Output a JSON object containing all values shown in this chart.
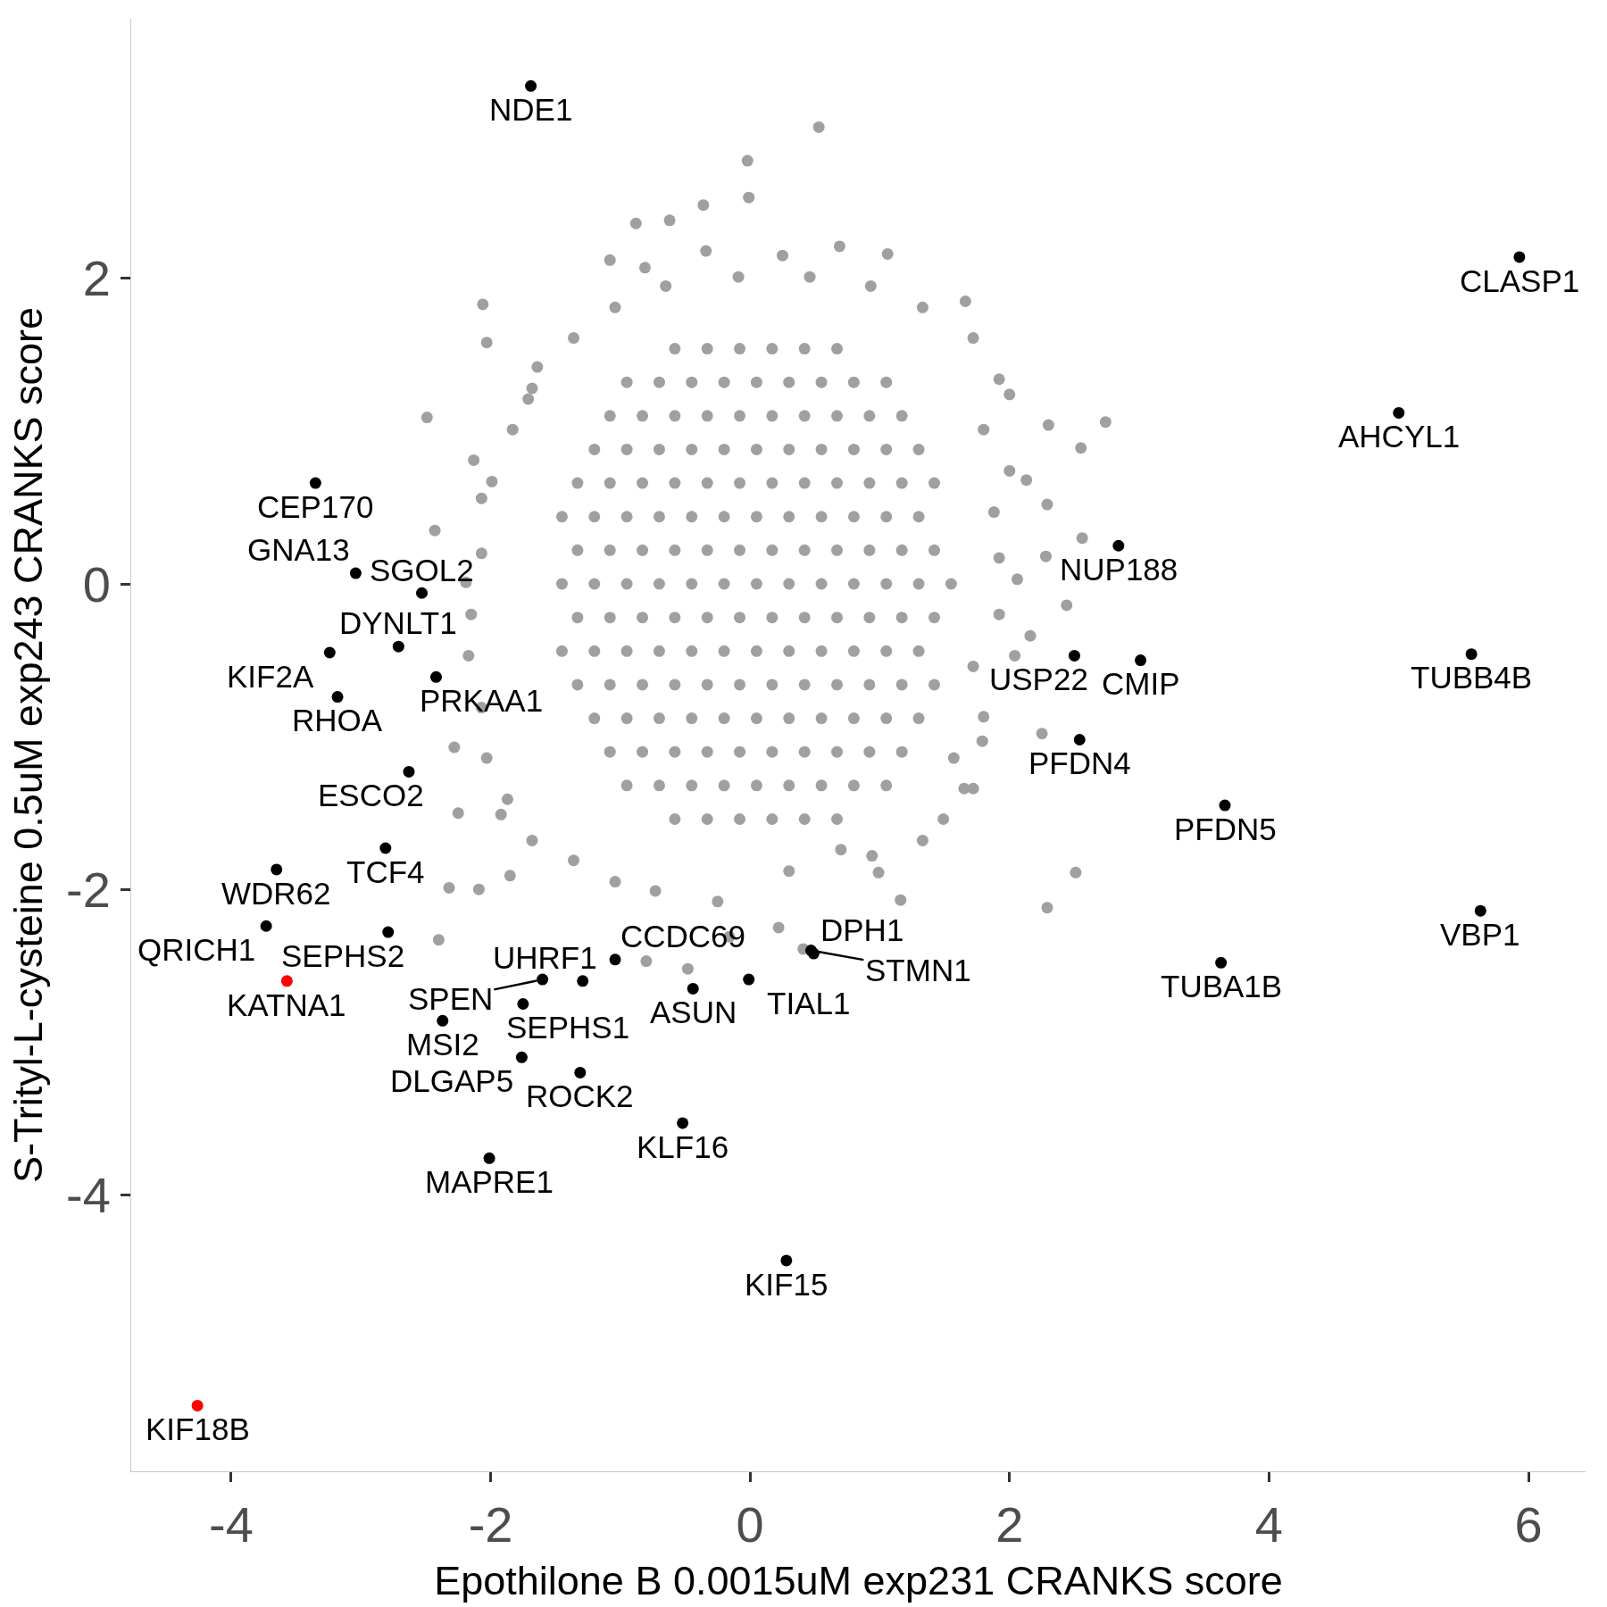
{
  "chart_data": {
    "type": "scatter",
    "xlabel": "Epothilone B 0.0015uM exp231 CRANKS score",
    "ylabel": "S-Trityl-L-cysteine 0.5uM exp243 CRANKS score",
    "xlim": [
      -4.77,
      6.44
    ],
    "ylim": [
      -5.81,
      3.7
    ],
    "xticks": [
      -4,
      -2,
      0,
      2,
      4,
      6
    ],
    "yticks": [
      -4,
      -2,
      0,
      2
    ],
    "marker": "circle",
    "series": [
      {
        "color": "#a0a0a0",
        "x": [
          0.53,
          -0.02,
          -0.01,
          -0.36,
          -0.62,
          -0.88,
          -1.08,
          -0.81,
          -0.34,
          0.25,
          0.69,
          1.06,
          -2.06,
          -2.03,
          -2.49,
          -1.64,
          -1.71,
          -2.13,
          -2.07,
          2.74,
          2.3,
          2.0,
          1.66,
          2.55,
          2.13,
          2.29,
          2.56,
          2.28,
          -2.43,
          -2.19,
          2.51,
          2.29,
          2.25,
          1.79,
          1.65,
          1.16,
          0.94,
          0.99,
          -2.25,
          -1.92,
          -2.28,
          -2.32,
          -2.4,
          -2.09,
          -1.85,
          -0.8,
          -0.48,
          -0.16,
          0.22,
          0.41,
          1.92,
          2.06,
          1.72,
          2.16,
          2.04,
          1.92,
          1.33,
          0.7,
          0.3,
          -0.25,
          -0.73,
          -1.04,
          -1.36,
          -1.68,
          -1.87,
          -2.03,
          -2.07,
          -2.17,
          -2.15,
          -2.07,
          -1.99,
          -1.83,
          -1.68,
          -1.36,
          -1.04,
          -0.65,
          -0.09,
          0.46,
          0.93,
          1.33,
          1.72,
          1.92,
          1.8,
          2.0,
          1.88,
          1.72,
          1.8,
          1.57,
          1.49,
          2.44,
          -1.45,
          -1.2,
          -0.95,
          -0.7,
          -0.45,
          -0.2,
          0.05,
          0.3,
          0.55,
          0.8,
          1.05,
          1.3,
          1.55,
          -1.33,
          -1.08,
          -0.83,
          -0.58,
          -0.33,
          -0.08,
          0.17,
          0.42,
          0.67,
          0.92,
          1.17,
          1.42,
          -1.33,
          -1.08,
          -0.83,
          -0.58,
          -0.33,
          -0.08,
          0.17,
          0.42,
          0.67,
          0.92,
          1.17,
          1.42,
          -1.45,
          -1.2,
          -0.95,
          -0.7,
          -0.45,
          -0.2,
          0.05,
          0.3,
          0.55,
          0.8,
          1.05,
          1.3,
          -1.45,
          -1.2,
          -0.95,
          -0.7,
          -0.45,
          -0.2,
          0.05,
          0.3,
          0.55,
          0.8,
          1.05,
          1.3,
          -1.33,
          -1.08,
          -0.83,
          -0.58,
          -0.33,
          -0.08,
          0.17,
          0.42,
          0.67,
          0.92,
          1.17,
          1.42,
          -1.33,
          -1.08,
          -0.83,
          -0.58,
          -0.33,
          -0.08,
          0.17,
          0.42,
          0.67,
          0.92,
          1.17,
          1.42,
          -1.2,
          -0.95,
          -0.7,
          -0.45,
          -0.2,
          0.05,
          0.3,
          0.55,
          0.8,
          1.05,
          1.3,
          -1.2,
          -0.95,
          -0.7,
          -0.45,
          -0.2,
          0.05,
          0.3,
          0.55,
          0.8,
          1.05,
          1.3,
          -1.08,
          -0.83,
          -0.58,
          -0.33,
          -0.08,
          0.17,
          0.42,
          0.67,
          0.92,
          1.17,
          -1.08,
          -0.83,
          -0.58,
          -0.33,
          -0.08,
          0.17,
          0.42,
          0.67,
          0.92,
          1.17,
          -0.95,
          -0.7,
          -0.45,
          -0.2,
          0.05,
          0.3,
          0.55,
          0.8,
          1.05,
          -0.95,
          -0.7,
          -0.45,
          -0.2,
          0.05,
          0.3,
          0.55,
          0.8,
          1.05,
          -0.58,
          -0.33,
          -0.08,
          0.17,
          0.42,
          0.67,
          -0.58,
          -0.33,
          -0.08,
          0.17,
          0.42,
          0.67
        ],
        "values": [
          2.99,
          2.77,
          2.53,
          2.48,
          2.38,
          2.36,
          2.12,
          2.07,
          2.18,
          2.15,
          2.21,
          2.16,
          1.83,
          1.58,
          1.09,
          1.42,
          1.21,
          0.81,
          0.56,
          1.06,
          1.04,
          1.24,
          1.85,
          0.89,
          0.68,
          0.52,
          0.3,
          0.18,
          0.35,
          0.01,
          -1.89,
          -2.12,
          -0.98,
          -1.03,
          -1.34,
          -2.07,
          -1.78,
          -1.89,
          -1.5,
          -1.51,
          -1.07,
          -1.99,
          -2.33,
          -2.0,
          -1.91,
          -2.47,
          -2.52,
          -2.31,
          -2.25,
          -2.39,
          0.17,
          0.03,
          -1.34,
          -0.34,
          -0.47,
          -0.2,
          -1.68,
          -1.74,
          -1.88,
          -2.08,
          -2.01,
          -1.95,
          -1.81,
          -1.68,
          -1.41,
          -1.14,
          -0.81,
          -0.47,
          -0.2,
          0.2,
          0.67,
          1.01,
          1.28,
          1.61,
          1.81,
          1.95,
          2.01,
          2.01,
          1.95,
          1.81,
          1.61,
          1.34,
          1.01,
          0.74,
          0.47,
          -0.54,
          -0.87,
          -1.14,
          -1.54,
          -0.14,
          0,
          0,
          0,
          0,
          0,
          0,
          0,
          0,
          0,
          0,
          0,
          0,
          0,
          0.22,
          0.22,
          0.22,
          0.22,
          0.22,
          0.22,
          0.22,
          0.22,
          0.22,
          0.22,
          0.22,
          0.22,
          -0.22,
          -0.22,
          -0.22,
          -0.22,
          -0.22,
          -0.22,
          -0.22,
          -0.22,
          -0.22,
          -0.22,
          -0.22,
          -0.22,
          0.44,
          0.44,
          0.44,
          0.44,
          0.44,
          0.44,
          0.44,
          0.44,
          0.44,
          0.44,
          0.44,
          0.44,
          -0.44,
          -0.44,
          -0.44,
          -0.44,
          -0.44,
          -0.44,
          -0.44,
          -0.44,
          -0.44,
          -0.44,
          -0.44,
          -0.44,
          0.66,
          0.66,
          0.66,
          0.66,
          0.66,
          0.66,
          0.66,
          0.66,
          0.66,
          0.66,
          0.66,
          0.66,
          -0.66,
          -0.66,
          -0.66,
          -0.66,
          -0.66,
          -0.66,
          -0.66,
          -0.66,
          -0.66,
          -0.66,
          -0.66,
          -0.66,
          0.88,
          0.88,
          0.88,
          0.88,
          0.88,
          0.88,
          0.88,
          0.88,
          0.88,
          0.88,
          0.88,
          -0.88,
          -0.88,
          -0.88,
          -0.88,
          -0.88,
          -0.88,
          -0.88,
          -0.88,
          -0.88,
          -0.88,
          -0.88,
          1.1,
          1.1,
          1.1,
          1.1,
          1.1,
          1.1,
          1.1,
          1.1,
          1.1,
          1.1,
          -1.1,
          -1.1,
          -1.1,
          -1.1,
          -1.1,
          -1.1,
          -1.1,
          -1.1,
          -1.1,
          -1.1,
          1.32,
          1.32,
          1.32,
          1.32,
          1.32,
          1.32,
          1.32,
          1.32,
          1.32,
          -1.32,
          -1.32,
          -1.32,
          -1.32,
          -1.32,
          -1.32,
          -1.32,
          -1.32,
          -1.32,
          1.54,
          1.54,
          1.54,
          1.54,
          1.54,
          1.54,
          -1.54,
          -1.54,
          -1.54,
          -1.54,
          -1.54,
          -1.54
        ]
      },
      {
        "color": "#000000",
        "x": [
          -1.69,
          5.93,
          5.0,
          -3.35,
          2.84,
          -3.04,
          -2.53,
          -2.71,
          2.5,
          5.56,
          -3.24,
          3.01,
          -2.42,
          -3.18,
          2.54,
          -2.63,
          3.66,
          -2.81,
          -3.65,
          5.63,
          -3.73,
          -2.79,
          0.47,
          -1.04,
          0.49,
          3.63,
          -1.6,
          -1.29,
          -0.01,
          -0.44,
          -1.75,
          -2.37,
          -1.76,
          -1.31,
          -0.52,
          -2.01,
          0.28
        ],
        "values": [
          3.26,
          2.14,
          1.12,
          0.66,
          0.25,
          0.07,
          -0.06,
          -0.41,
          -0.47,
          -0.46,
          -0.45,
          -0.5,
          -0.61,
          -0.74,
          -1.02,
          -1.23,
          -1.45,
          -1.73,
          -1.87,
          -2.14,
          -2.24,
          -2.28,
          -2.4,
          -2.46,
          -2.42,
          -2.48,
          -2.59,
          -2.6,
          -2.59,
          -2.65,
          -2.75,
          -2.86,
          -3.1,
          -3.2,
          -3.53,
          -3.76,
          -4.43
        ]
      },
      {
        "color": "#ff0000",
        "x": [
          -3.57,
          -4.26
        ],
        "values": [
          -2.6,
          -5.38
        ]
      }
    ],
    "annotations": [
      {
        "text": "NDE1",
        "x": -1.69,
        "y": 3.26
      },
      {
        "text": "CLASP1",
        "x": 5.93,
        "y": 2.14
      },
      {
        "text": "AHCYL1",
        "x": 5.0,
        "y": 1.12
      },
      {
        "text": "CEP170",
        "x": -3.35,
        "y": 0.66
      },
      {
        "text": "NUP188",
        "x": 2.84,
        "y": 0.25
      },
      {
        "text": "GNA13",
        "x": -3.04,
        "y": 0.07
      },
      {
        "text": "SGOL2",
        "x": -2.53,
        "y": -0.06
      },
      {
        "text": "DYNLT1",
        "x": -2.71,
        "y": -0.41
      },
      {
        "text": "USP22",
        "x": 2.5,
        "y": -0.47
      },
      {
        "text": "TUBB4B",
        "x": 5.56,
        "y": -0.46
      },
      {
        "text": "KIF2A",
        "x": -3.24,
        "y": -0.45
      },
      {
        "text": "CMIP",
        "x": 3.01,
        "y": -0.5
      },
      {
        "text": "PRKAA1",
        "x": -2.42,
        "y": -0.61
      },
      {
        "text": "RHOA",
        "x": -3.18,
        "y": -0.74
      },
      {
        "text": "PFDN4",
        "x": 2.54,
        "y": -1.02
      },
      {
        "text": "ESCO2",
        "x": -2.63,
        "y": -1.23
      },
      {
        "text": "PFDN5",
        "x": 3.66,
        "y": -1.45
      },
      {
        "text": "TCF4",
        "x": -2.81,
        "y": -1.73
      },
      {
        "text": "WDR62",
        "x": -3.65,
        "y": -1.87
      },
      {
        "text": "VBP1",
        "x": 5.63,
        "y": -2.14
      },
      {
        "text": "QRICH1",
        "x": -3.73,
        "y": -2.24
      },
      {
        "text": "SEPHS2",
        "x": -2.79,
        "y": -2.28
      },
      {
        "text": "STMN1",
        "x": 0.47,
        "y": -2.4
      },
      {
        "text": "CCDC69",
        "x": -1.04,
        "y": -2.46
      },
      {
        "text": "DPH1",
        "x": 0.49,
        "y": -2.42
      },
      {
        "text": "TUBA1B",
        "x": 3.63,
        "y": -2.48
      },
      {
        "text": "KATNA1",
        "x": -3.57,
        "y": -2.6
      },
      {
        "text": "SPEN",
        "x": -1.6,
        "y": -2.59
      },
      {
        "text": "UHRF1",
        "x": -1.29,
        "y": -2.6
      },
      {
        "text": "TIAL1",
        "x": -0.01,
        "y": -2.59
      },
      {
        "text": "ASUN",
        "x": -0.44,
        "y": -2.65
      },
      {
        "text": "SEPHS1",
        "x": -1.75,
        "y": -2.75
      },
      {
        "text": "MSI2",
        "x": -2.37,
        "y": -2.86
      },
      {
        "text": "DLGAP5",
        "x": -1.76,
        "y": -3.1
      },
      {
        "text": "ROCK2",
        "x": -1.31,
        "y": -3.2
      },
      {
        "text": "KLF16",
        "x": -0.52,
        "y": -3.53
      },
      {
        "text": "MAPRE1",
        "x": -2.01,
        "y": -3.76
      },
      {
        "text": "KIF15",
        "x": 0.28,
        "y": -4.43
      },
      {
        "text": "KIF18B",
        "x": -4.26,
        "y": -5.38
      }
    ]
  }
}
